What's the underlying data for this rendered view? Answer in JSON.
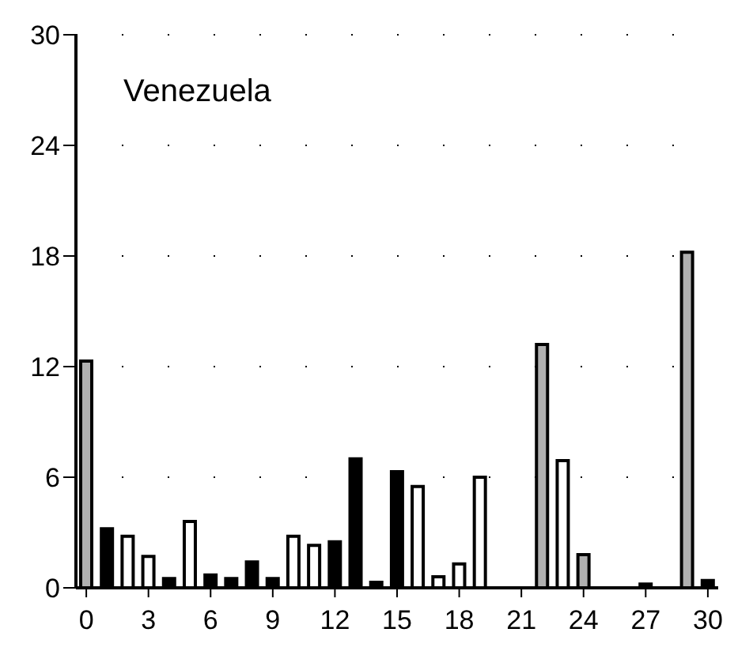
{
  "chart_data": {
    "type": "bar",
    "title": "Venezuela",
    "x": [
      0,
      1,
      2,
      3,
      4,
      5,
      6,
      7,
      8,
      9,
      10,
      11,
      12,
      13,
      14,
      15,
      16,
      17,
      18,
      19,
      20,
      21,
      22,
      23,
      24,
      25,
      26,
      27,
      28,
      29,
      30
    ],
    "values": [
      12.3,
      3.2,
      2.8,
      1.7,
      0.5,
      3.6,
      0.7,
      0.5,
      1.4,
      0.5,
      2.8,
      2.3,
      2.5,
      7.0,
      0.3,
      6.3,
      5.5,
      0.6,
      1.3,
      6.0,
      0,
      0,
      13.2,
      6.9,
      1.8,
      0,
      0,
      0.2,
      0,
      18.2,
      0.4
    ],
    "colors": [
      "#b0b0b0",
      "#000000",
      "#ffffff",
      "#ffffff",
      "#000000",
      "#ffffff",
      "#000000",
      "#000000",
      "#000000",
      "#000000",
      "#ffffff",
      "#ffffff",
      "#000000",
      "#000000",
      "#000000",
      "#000000",
      "#ffffff",
      "#ffffff",
      "#ffffff",
      "#ffffff",
      "#000000",
      "#000000",
      "#b0b0b0",
      "#ffffff",
      "#b0b0b0",
      "#000000",
      "#000000",
      "#000000",
      "#000000",
      "#b0b0b0",
      "#000000"
    ],
    "xlim": [
      -0.5,
      30.5
    ],
    "xticks": [
      0,
      3,
      6,
      9,
      12,
      15,
      18,
      21,
      24,
      27,
      30
    ],
    "ylim": [
      0,
      30
    ],
    "yticks": [
      0,
      6,
      12,
      18,
      24,
      30
    ],
    "grid": "y"
  }
}
